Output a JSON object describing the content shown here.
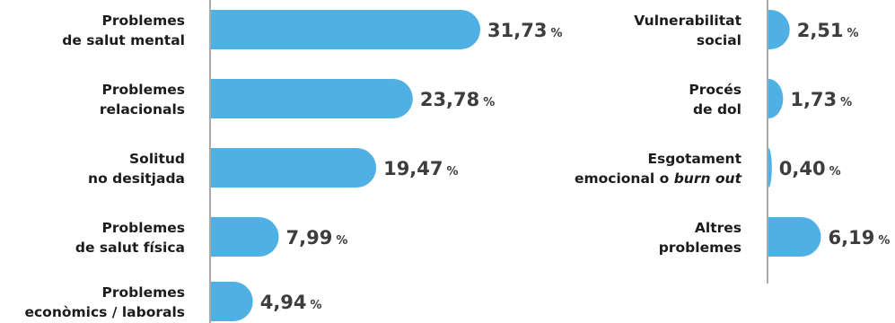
{
  "colors": {
    "bar": "#4fb0e3",
    "axis": "#555555",
    "label": "#1c1c1c",
    "value": "#3d3d3d"
  },
  "chart_data": [
    {
      "type": "bar",
      "orientation": "horizontal",
      "unit": "%",
      "categories": [
        [
          "Problemes",
          "de salut mental"
        ],
        [
          "Problemes",
          "relacionals"
        ],
        [
          "Solitud",
          "no desitjada"
        ],
        [
          "Problemes",
          "de salut física"
        ],
        [
          "Problemes",
          "econòmics / laborals"
        ]
      ],
      "values": [
        31.73,
        23.78,
        19.47,
        7.99,
        4.94
      ],
      "value_labels": [
        "31,73",
        "23,78",
        "19,47",
        "7,99",
        "4,94"
      ],
      "xlim": [
        0,
        31.73
      ]
    },
    {
      "type": "bar",
      "orientation": "horizontal",
      "unit": "%",
      "categories": [
        [
          "Vulnerabilitat",
          "social"
        ],
        [
          "Procés",
          "de dol"
        ],
        [
          "Esgotament",
          "emocional o |burn out|"
        ],
        [
          "Altres",
          "problemes"
        ]
      ],
      "values": [
        2.51,
        1.73,
        0.4,
        6.19
      ],
      "value_labels": [
        "2,51",
        "1,73",
        "0,40",
        "6,19"
      ],
      "xlim": [
        0,
        31.73
      ]
    }
  ]
}
